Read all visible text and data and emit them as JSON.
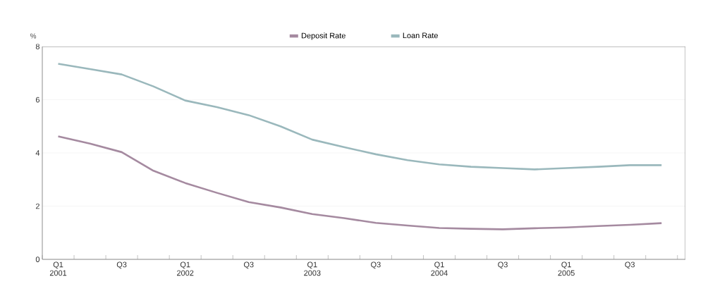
{
  "chart_data": {
    "type": "line",
    "ylabel": "%",
    "categories": [
      "Q1 2001",
      null,
      "Q3",
      null,
      "Q1 2002",
      null,
      "Q3",
      null,
      "Q1 2003",
      null,
      "Q3",
      null,
      "Q1 2004",
      null,
      "Q3",
      null,
      "Q1 2005",
      null,
      "Q3",
      null
    ],
    "series": [
      {
        "name": "Deposit Rate",
        "color": "#a58aa0",
        "values": [
          4.62,
          4.35,
          4.03,
          3.33,
          2.87,
          2.5,
          2.15,
          1.95,
          1.7,
          1.55,
          1.37,
          1.27,
          1.18,
          1.15,
          1.13,
          1.17,
          1.2,
          1.25,
          1.3,
          1.36
        ]
      },
      {
        "name": "Loan Rate",
        "color": "#9ab8bc",
        "values": [
          7.35,
          7.15,
          6.95,
          6.5,
          5.97,
          5.72,
          5.42,
          5.0,
          4.5,
          4.22,
          3.95,
          3.73,
          3.57,
          3.48,
          3.43,
          3.38,
          3.43,
          3.48,
          3.54,
          3.54
        ]
      }
    ],
    "ylim": [
      0,
      8
    ],
    "yticks": [
      0,
      2,
      4,
      6,
      8
    ],
    "grid": "y",
    "legend": "top",
    "marker": "none",
    "line_style": "solid"
  }
}
